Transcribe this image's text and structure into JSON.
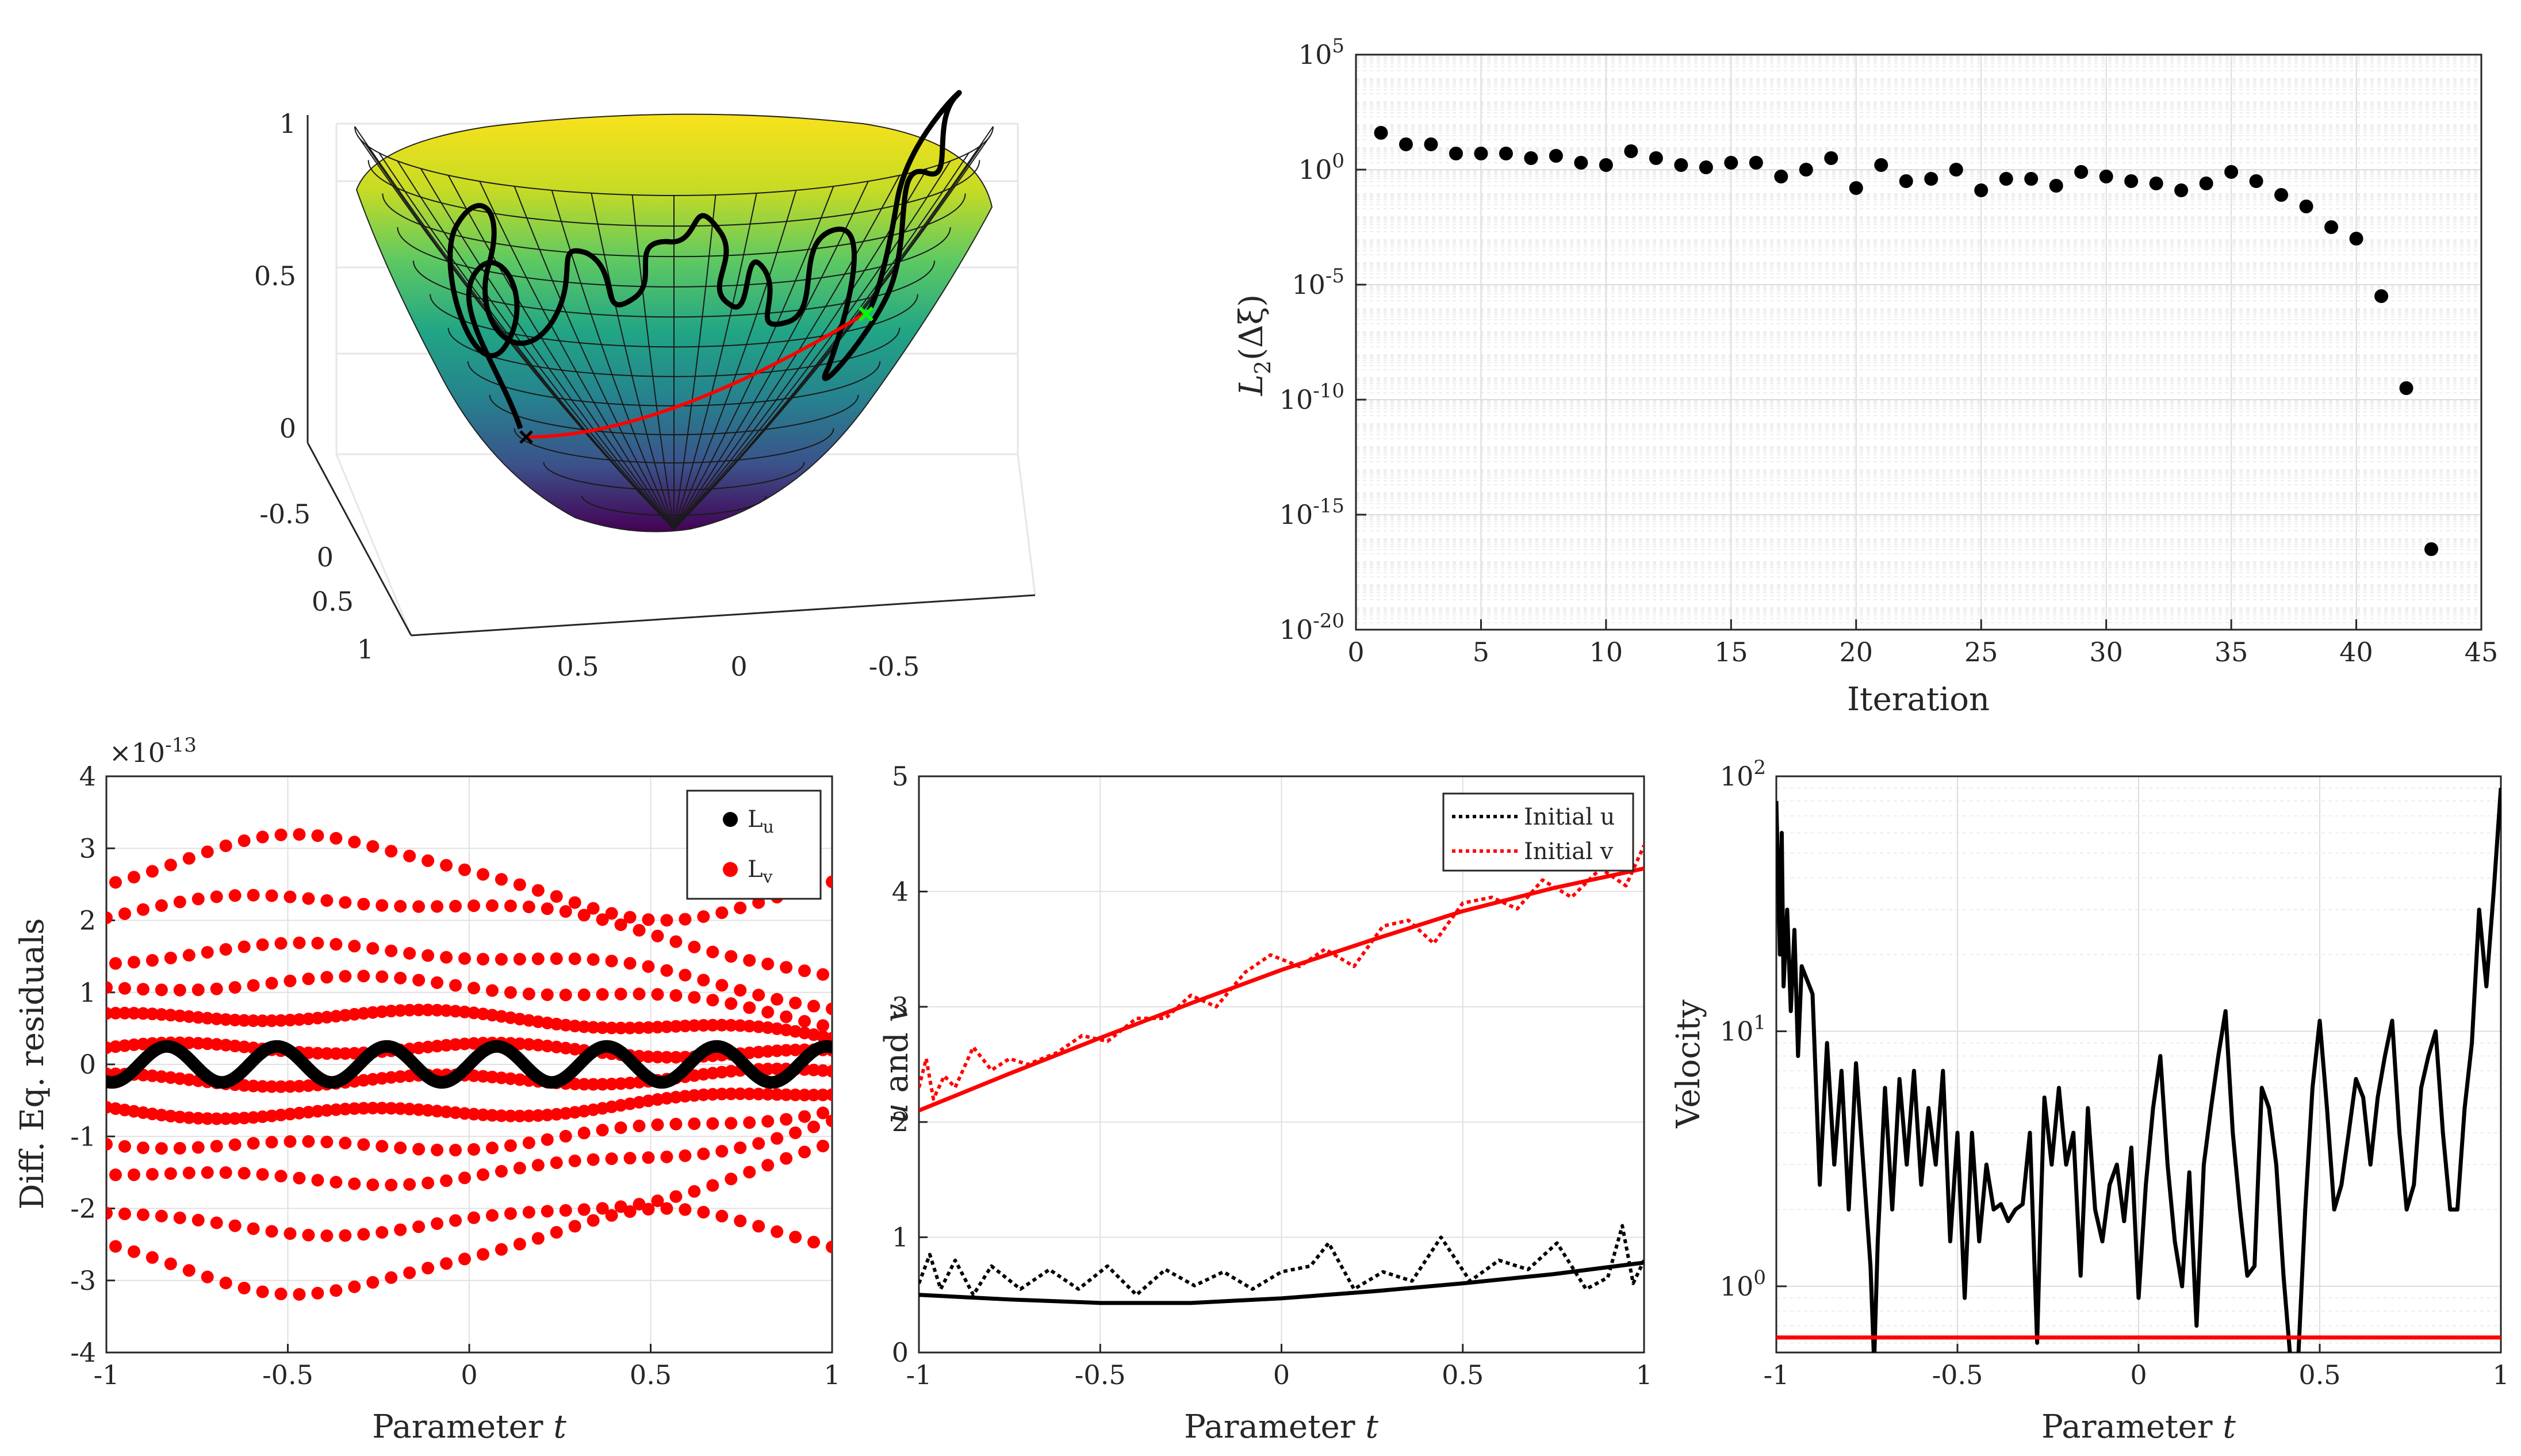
{
  "chart_data": [
    {
      "id": "surface3d",
      "type": "surface",
      "description_type": "3d-paraboloid",
      "z_ticks": [
        "1",
        "0.5",
        "0"
      ],
      "y_ticks": [
        "-0.5",
        "0",
        "0.5",
        "1"
      ],
      "x_ticks": [
        "0.5",
        "0",
        "-0.5"
      ],
      "colors": {
        "path": "#000000",
        "geodesic": "#ff0000",
        "start_marker": "#00ff00"
      }
    },
    {
      "id": "convergence",
      "type": "scatter",
      "yscale": "log",
      "xlabel": "Iteration",
      "ylabel_base": "L",
      "ylabel_sub": "2",
      "ylabel_arg": "(Δξ)",
      "xlim": [
        0,
        45
      ],
      "ylim_exp": [
        -20,
        5
      ],
      "x_ticks": [
        "0",
        "5",
        "10",
        "15",
        "20",
        "25",
        "30",
        "35",
        "40",
        "45"
      ],
      "y_tick_exps": [
        "5",
        "0",
        "-5",
        "-10",
        "-15",
        "-20"
      ],
      "x": [
        1,
        2,
        3,
        4,
        5,
        6,
        7,
        8,
        9,
        10,
        11,
        12,
        13,
        14,
        15,
        16,
        17,
        18,
        19,
        20,
        21,
        22,
        23,
        24,
        25,
        26,
        27,
        28,
        29,
        30,
        31,
        32,
        33,
        34,
        35,
        36,
        37,
        38,
        39,
        40,
        41,
        42,
        43
      ],
      "log10_y": [
        1.6,
        1.1,
        1.1,
        0.7,
        0.7,
        0.7,
        0.5,
        0.6,
        0.3,
        0.2,
        0.8,
        0.5,
        0.2,
        0.1,
        0.3,
        0.3,
        -0.3,
        0.0,
        0.5,
        -0.8,
        0.2,
        -0.5,
        -0.4,
        0.0,
        -0.9,
        -0.4,
        -0.4,
        -0.7,
        -0.1,
        -0.3,
        -0.5,
        -0.6,
        -0.9,
        -0.6,
        -0.1,
        -0.5,
        -1.1,
        -1.6,
        -2.5,
        -3.0,
        -5.5,
        -9.5,
        -16.5
      ],
      "colors": {
        "points": "#000000"
      }
    },
    {
      "id": "residuals",
      "type": "scatter",
      "xlabel_text": "Parameter",
      "xlabel_var": "t",
      "ylabel": "Diff. Eq. residuals",
      "exponent_label": "×10",
      "exponent_value": "-13",
      "xlim": [
        -1,
        1
      ],
      "ylim": [
        -4,
        4
      ],
      "x_ticks": [
        "-1",
        "-0.5",
        "0",
        "0.5",
        "1"
      ],
      "y_ticks": [
        "4",
        "3",
        "2",
        "1",
        "0",
        "-1",
        "-2",
        "-3",
        "-4"
      ],
      "legend": [
        {
          "name": "L",
          "sub": "u"
        },
        {
          "name": "L",
          "sub": "v"
        }
      ],
      "series": [
        {
          "name": "Lu",
          "color": "#000000",
          "model": "0.25*sin(2*pi*3.3*t)",
          "n_points": 400
        },
        {
          "name": "Lv",
          "color": "#ff0000",
          "model": "bands at ±0.2, ±0.6, ±1.0, ±1.4, ±2.0, ±2.6 with envelope up to ±3.2",
          "n_points": 480
        }
      ]
    },
    {
      "id": "uv",
      "type": "line",
      "xlabel_text": "Parameter",
      "xlabel_var": "t",
      "ylabel_u": "u",
      "ylabel_and": "and",
      "ylabel_v": "v",
      "xlim": [
        -1,
        1
      ],
      "ylim": [
        0,
        5
      ],
      "x_ticks": [
        "-1",
        "-0.5",
        "0",
        "0.5",
        "1"
      ],
      "y_ticks": [
        "5",
        "4",
        "3",
        "2",
        "1",
        "0"
      ],
      "legend": [
        "Initial u",
        "Initial v"
      ],
      "series": [
        {
          "name": "u",
          "style": "solid",
          "color": "#000000",
          "x": [
            -1,
            -0.75,
            -0.5,
            -0.25,
            0,
            0.25,
            0.5,
            0.75,
            1
          ],
          "y": [
            0.5,
            0.46,
            0.43,
            0.43,
            0.47,
            0.53,
            0.6,
            0.68,
            0.78
          ]
        },
        {
          "name": "v",
          "style": "solid",
          "color": "#ff0000",
          "x": [
            -1,
            -0.75,
            -0.5,
            -0.25,
            0,
            0.25,
            0.5,
            0.75,
            1
          ],
          "y": [
            2.1,
            2.42,
            2.73,
            3.03,
            3.32,
            3.58,
            3.83,
            4.03,
            4.2
          ]
        },
        {
          "name": "Initial u",
          "style": "dotted",
          "color": "#000000",
          "x": [
            -1,
            -0.97,
            -0.94,
            -0.9,
            -0.85,
            -0.8,
            -0.72,
            -0.64,
            -0.56,
            -0.48,
            -0.4,
            -0.32,
            -0.24,
            -0.16,
            -0.08,
            0,
            0.08,
            0.13,
            0.2,
            0.28,
            0.36,
            0.44,
            0.52,
            0.6,
            0.68,
            0.76,
            0.84,
            0.9,
            0.94,
            0.97,
            1
          ],
          "y": [
            0.6,
            0.85,
            0.55,
            0.8,
            0.5,
            0.75,
            0.55,
            0.72,
            0.55,
            0.75,
            0.5,
            0.72,
            0.58,
            0.7,
            0.55,
            0.7,
            0.75,
            0.95,
            0.55,
            0.7,
            0.62,
            1.0,
            0.62,
            0.8,
            0.72,
            0.95,
            0.55,
            0.65,
            1.1,
            0.6,
            0.8
          ]
        },
        {
          "name": "Initial v",
          "style": "dotted",
          "color": "#ff0000",
          "x": [
            -1,
            -0.98,
            -0.96,
            -0.93,
            -0.9,
            -0.85,
            -0.8,
            -0.75,
            -0.7,
            -0.62,
            -0.55,
            -0.48,
            -0.4,
            -0.32,
            -0.25,
            -0.18,
            -0.1,
            -0.03,
            0.05,
            0.12,
            0.2,
            0.28,
            0.35,
            0.42,
            0.5,
            0.58,
            0.65,
            0.72,
            0.8,
            0.88,
            0.95,
            1
          ],
          "y": [
            2.3,
            2.55,
            2.2,
            2.4,
            2.3,
            2.65,
            2.45,
            2.55,
            2.5,
            2.6,
            2.75,
            2.7,
            2.9,
            2.9,
            3.1,
            3.0,
            3.3,
            3.45,
            3.35,
            3.5,
            3.35,
            3.7,
            3.75,
            3.55,
            3.9,
            3.95,
            3.85,
            4.1,
            3.95,
            4.2,
            4.05,
            4.4
          ]
        }
      ]
    },
    {
      "id": "velocity",
      "type": "line",
      "yscale": "log",
      "xlabel_text": "Parameter",
      "xlabel_var": "t",
      "ylabel": "Velocity",
      "xlim": [
        -1,
        1
      ],
      "ylim": [
        0.55,
        100
      ],
      "x_ticks": [
        "-1",
        "-0.5",
        "0",
        "0.5",
        "1"
      ],
      "y_tick_exps": [
        "2",
        "1",
        "0"
      ],
      "threshold": 0.63,
      "series": [
        {
          "name": "velocity",
          "color": "#000000",
          "x": [
            -1,
            -0.99,
            -0.985,
            -0.98,
            -0.97,
            -0.96,
            -0.95,
            -0.94,
            -0.93,
            -0.9,
            -0.88,
            -0.86,
            -0.84,
            -0.82,
            -0.8,
            -0.78,
            -0.76,
            -0.74,
            -0.73,
            -0.72,
            -0.7,
            -0.68,
            -0.66,
            -0.64,
            -0.62,
            -0.6,
            -0.58,
            -0.56,
            -0.54,
            -0.52,
            -0.5,
            -0.48,
            -0.46,
            -0.44,
            -0.42,
            -0.4,
            -0.38,
            -0.36,
            -0.34,
            -0.32,
            -0.3,
            -0.28,
            -0.27,
            -0.26,
            -0.24,
            -0.22,
            -0.2,
            -0.18,
            -0.16,
            -0.14,
            -0.12,
            -0.1,
            -0.08,
            -0.06,
            -0.04,
            -0.02,
            0,
            0.02,
            0.04,
            0.06,
            0.08,
            0.1,
            0.12,
            0.14,
            0.16,
            0.18,
            0.2,
            0.22,
            0.24,
            0.26,
            0.28,
            0.3,
            0.32,
            0.34,
            0.36,
            0.38,
            0.4,
            0.42,
            0.43,
            0.44,
            0.46,
            0.48,
            0.5,
            0.52,
            0.54,
            0.56,
            0.58,
            0.6,
            0.62,
            0.64,
            0.66,
            0.68,
            0.7,
            0.72,
            0.74,
            0.76,
            0.78,
            0.8,
            0.82,
            0.84,
            0.86,
            0.88,
            0.9,
            0.92,
            0.94,
            0.96,
            0.98,
            1
          ],
          "y": [
            80,
            20,
            60,
            15,
            30,
            12,
            25,
            8,
            18,
            14,
            2.5,
            9,
            3,
            7,
            2,
            7.5,
            3,
            1.2,
            0.5,
            1.5,
            6,
            2,
            6.5,
            3,
            7,
            2.5,
            5,
            3,
            7,
            1.5,
            4,
            0.9,
            4,
            1.5,
            3,
            2,
            2.1,
            1.8,
            2.0,
            2.1,
            4,
            0.6,
            2,
            5.5,
            3,
            6,
            3,
            4,
            1.1,
            5,
            2,
            1.5,
            2.5,
            3,
            1.8,
            3.5,
            0.9,
            2.5,
            5,
            8,
            3,
            1.5,
            1.0,
            2.8,
            0.7,
            3,
            5,
            8,
            12,
            4,
            2,
            1.1,
            1.2,
            6,
            5,
            3,
            1.1,
            0.5,
            0.45,
            0.5,
            2,
            6,
            11,
            5,
            2,
            2.5,
            4,
            6.5,
            5.5,
            3,
            5.5,
            8,
            11,
            4,
            2,
            2.5,
            6,
            8,
            10,
            4,
            2,
            2,
            5,
            9,
            30,
            15,
            35,
            90
          ]
        },
        {
          "name": "threshold",
          "color": "#ff0000",
          "x": [
            -1,
            1
          ],
          "y": [
            0.63,
            0.63
          ]
        }
      ]
    }
  ]
}
